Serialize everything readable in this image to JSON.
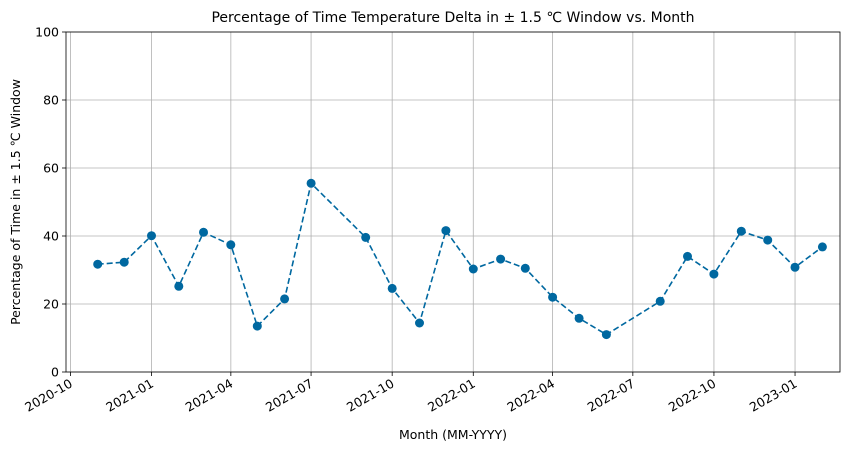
{
  "chart_data": {
    "type": "line",
    "title": "Percentage of Time Temperature Delta in ± 1.5 ℃ Window vs. Month",
    "xlabel": "Month (MM-YYYY)",
    "ylabel": "Percentage of Time in ± 1.5 ℃ Window",
    "x_ticks": [
      "2020-10",
      "2021-01",
      "2021-04",
      "2021-07",
      "2021-10",
      "2022-01",
      "2022-04",
      "2022-07",
      "2022-10",
      "2023-01"
    ],
    "xlim": [
      "2020-09-26",
      "2023-02-21"
    ],
    "ylim": [
      0,
      100
    ],
    "y_ticks": [
      0,
      20,
      40,
      60,
      80,
      100
    ],
    "grid": true,
    "line_style": "dashed",
    "marker": "circle",
    "color": "#0068a0",
    "series": [
      {
        "x": [
          "2020-11-01",
          "2020-12-01",
          "2021-01-01",
          "2021-02-01",
          "2021-03-01",
          "2021-04-01",
          "2021-05-01",
          "2021-06-01",
          "2021-07-01",
          "2021-09-01",
          "2021-10-01",
          "2021-11-01",
          "2021-12-01",
          "2022-01-01",
          "2022-02-01",
          "2022-03-01",
          "2022-04-01",
          "2022-05-01",
          "2022-06-01",
          "2022-08-01",
          "2022-09-01",
          "2022-10-01",
          "2022-11-01",
          "2022-12-01",
          "2023-01-01",
          "2023-02-01"
        ],
        "values": [
          31.7,
          32.3,
          40.1,
          25.2,
          41.1,
          37.4,
          13.5,
          21.5,
          55.5,
          39.6,
          24.6,
          14.4,
          41.6,
          30.3,
          33.2,
          30.5,
          22.0,
          15.8,
          11.0,
          20.8,
          34.0,
          28.8,
          41.4,
          38.8,
          30.8,
          36.8
        ]
      }
    ]
  }
}
